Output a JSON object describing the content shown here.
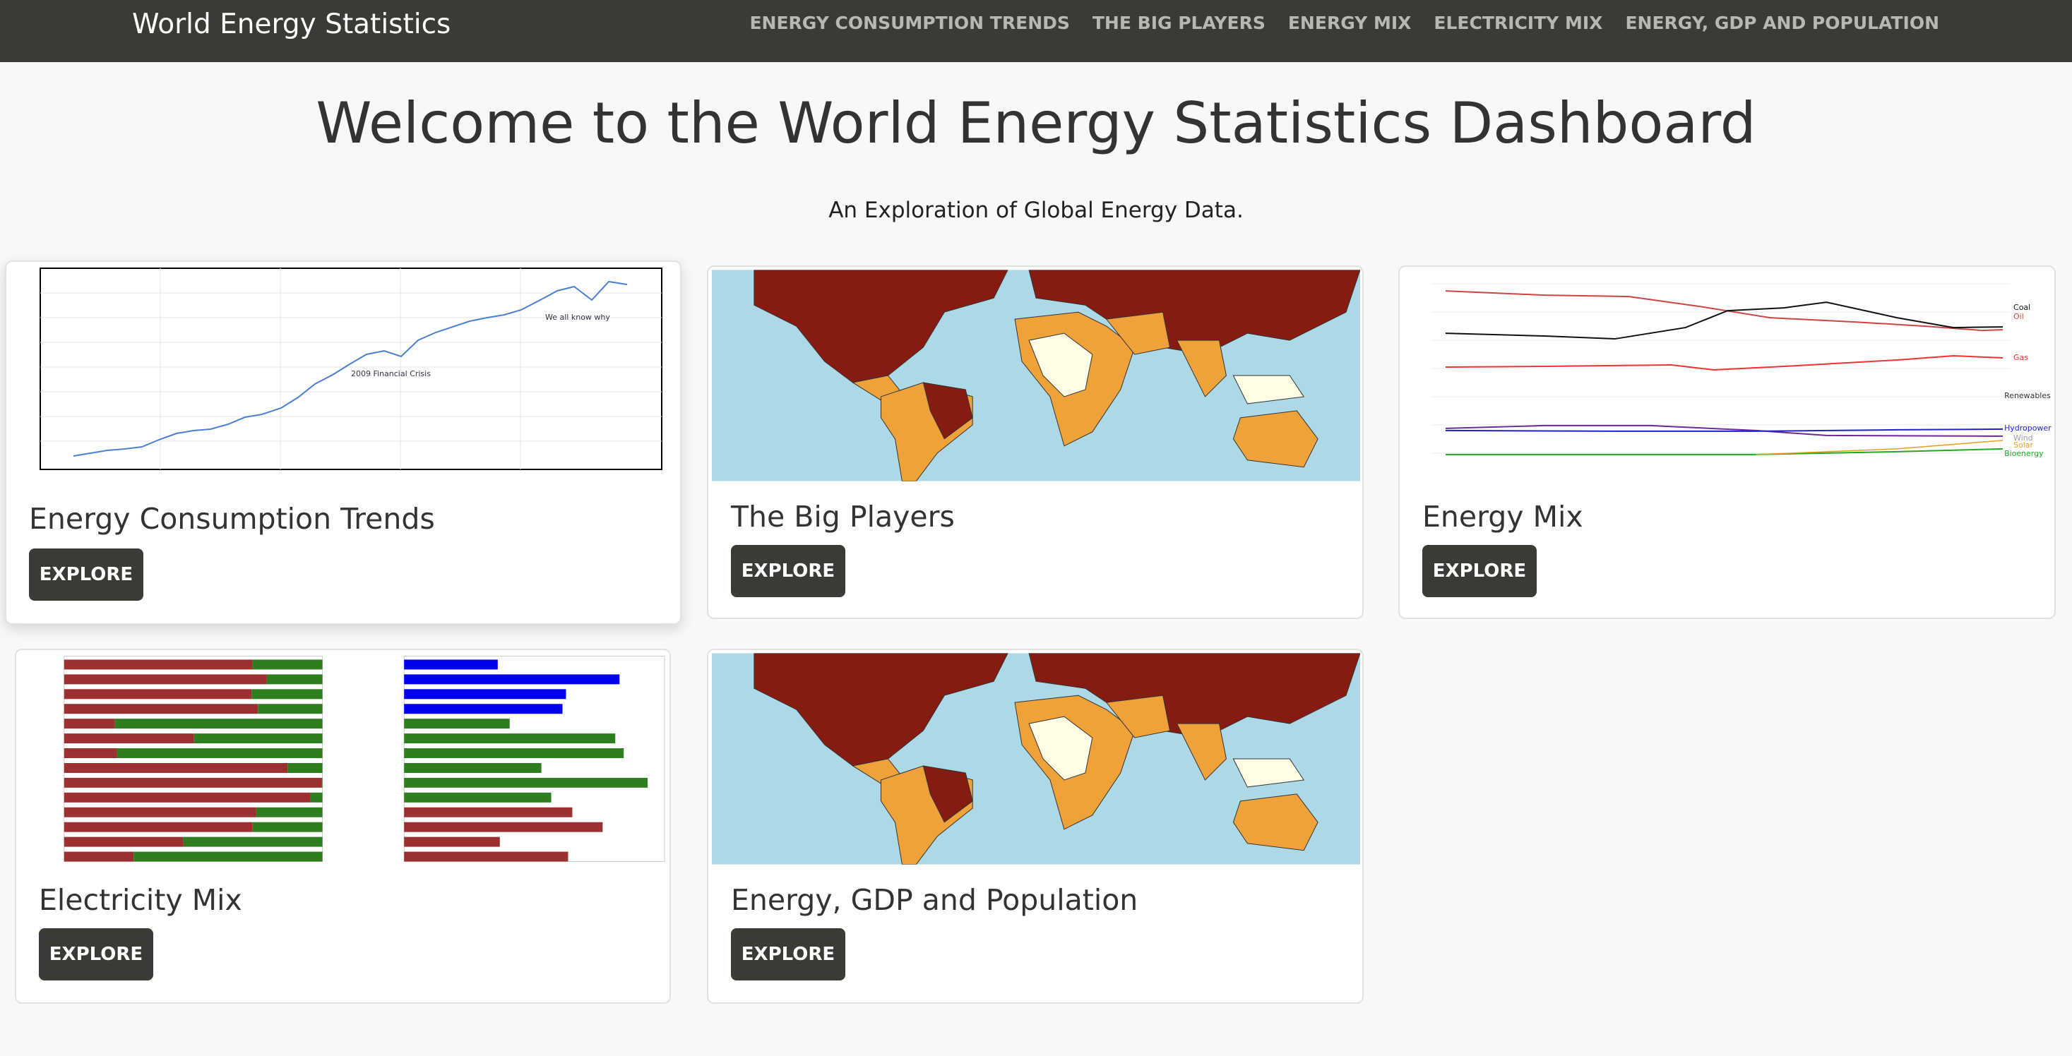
{
  "navbar": {
    "brand": "World Energy Statistics",
    "links": [
      "ENERGY CONSUMPTION TRENDS",
      "THE BIG PLAYERS",
      "ENERGY MIX",
      "ELECTRICITY MIX",
      "ENERGY, GDP AND POPULATION"
    ]
  },
  "header": {
    "title": "Welcome to the World Energy Statistics Dashboard",
    "subtitle": "An Exploration of Global Energy Data."
  },
  "cards": [
    {
      "title": "Energy Consumption Trends",
      "button": "EXPLORE",
      "image_labels": [
        "2009 Financial Crisis",
        "We all know why"
      ]
    },
    {
      "title": "The Big Players",
      "button": "EXPLORE"
    },
    {
      "title": "Energy Mix",
      "button": "EXPLORE",
      "image_labels": [
        "Coal",
        "Oil",
        "Gas",
        "Renewables",
        "Hydropower",
        "Wind",
        "Solar",
        "Bioenergy"
      ]
    },
    {
      "title": "Electricity Mix",
      "button": "EXPLORE"
    },
    {
      "title": "Energy, GDP and Population",
      "button": "EXPLORE"
    }
  ]
}
